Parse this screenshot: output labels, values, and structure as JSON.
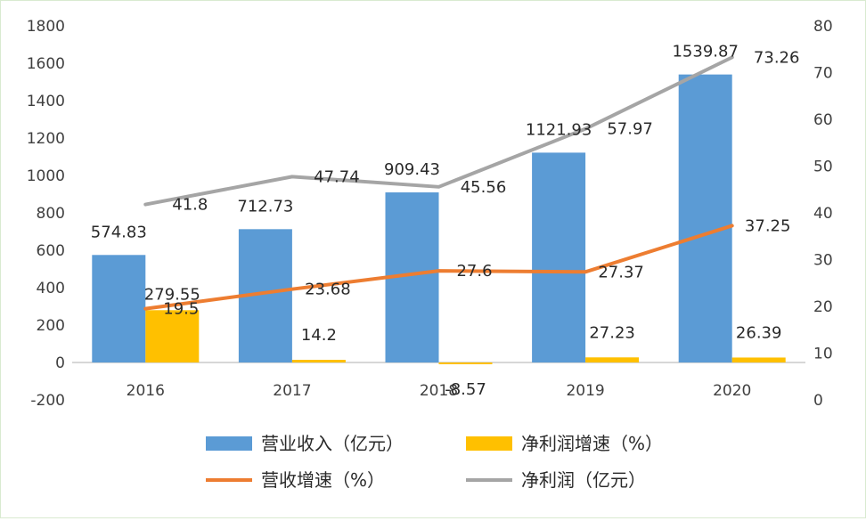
{
  "chart_data": {
    "type": "bar",
    "categories": [
      "2016",
      "2017",
      "2018",
      "2019",
      "2020"
    ],
    "series": [
      {
        "name": "营业收入（亿元）",
        "kind": "bar",
        "axis": "left",
        "color": "#5b9bd5",
        "values": [
          574.83,
          712.73,
          909.43,
          1121.93,
          1539.87
        ],
        "labels": [
          "574.83",
          "712.73",
          "909.43",
          "1121.93",
          "1539.87"
        ]
      },
      {
        "name": "净利润增速（%）",
        "kind": "bar",
        "axis": "left",
        "color": "#ffc000",
        "values": [
          279.55,
          14.2,
          -8.57,
          27.23,
          26.39
        ],
        "labels": [
          "279.55",
          "14.2",
          "-8.57",
          "27.23",
          "26.39"
        ]
      },
      {
        "name": "营收增速（%）",
        "kind": "line",
        "axis": "right",
        "color": "#ed7d31",
        "values": [
          19.5,
          23.68,
          27.6,
          27.37,
          37.25
        ],
        "labels": [
          "19.5",
          "23.68",
          "27.6",
          "27.37",
          "37.25"
        ]
      },
      {
        "name": "净利润（亿元）",
        "kind": "line",
        "axis": "right",
        "color": "#a5a5a5",
        "values": [
          41.8,
          47.74,
          45.56,
          57.97,
          73.26
        ],
        "labels": [
          "41.8",
          "47.74",
          "45.56",
          "57.97",
          "73.26"
        ]
      }
    ],
    "y_left": {
      "min": -200,
      "max": 1800,
      "step": 200,
      "ticks": [
        "-200",
        "0",
        "200",
        "400",
        "600",
        "800",
        "1000",
        "1200",
        "1400",
        "1600",
        "1800"
      ]
    },
    "y_right": {
      "min": 0,
      "max": 80,
      "step": 10,
      "ticks": [
        "0",
        "10",
        "20",
        "30",
        "40",
        "50",
        "60",
        "70",
        "80"
      ]
    },
    "grid": false,
    "legend_position": "bottom",
    "legend_order": [
      0,
      1,
      2,
      3
    ]
  }
}
